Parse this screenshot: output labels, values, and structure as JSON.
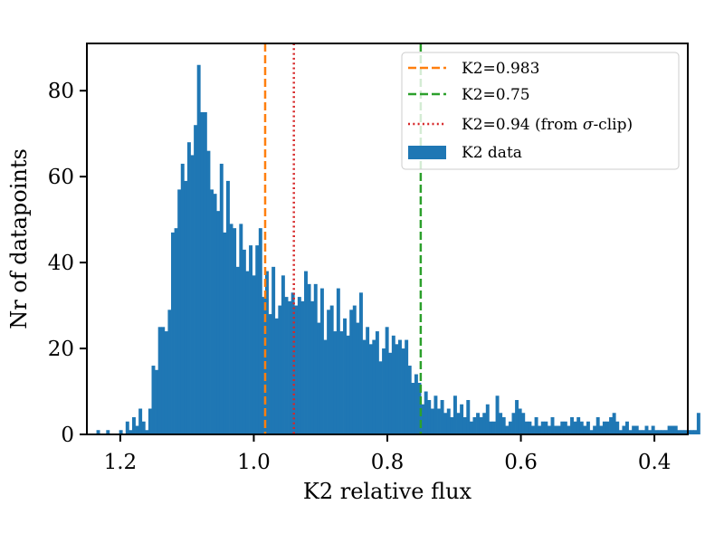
{
  "chart_data": {
    "type": "bar",
    "subtype": "histogram",
    "title": "",
    "xlabel": "K2 relative flux",
    "ylabel": "Nr of datapoints",
    "xlim": [
      1.25,
      0.35
    ],
    "x_inverted": true,
    "ylim": [
      0,
      91
    ],
    "xticks": [
      1.2,
      1.0,
      0.8,
      0.6,
      0.4
    ],
    "xtick_labels": [
      "1.2",
      "1.0",
      "0.8",
      "0.6",
      "0.4"
    ],
    "yticks": [
      0,
      20,
      40,
      60,
      80
    ],
    "ytick_labels": [
      "0",
      "20",
      "40",
      "60",
      "80"
    ],
    "grid": false,
    "legend_position": "top-right",
    "bin_start": 1.2357,
    "bin_width": 0.00486,
    "series": [
      {
        "name": "K2 data",
        "color": "#1f77b4",
        "values": [
          1,
          0,
          0,
          1,
          0,
          0,
          0,
          1,
          0,
          3,
          1,
          4,
          2,
          6,
          3,
          1,
          6,
          16,
          15,
          25,
          25,
          24,
          29,
          47,
          48,
          57,
          63,
          59,
          68,
          65,
          72,
          86,
          75,
          75,
          66,
          57,
          56,
          52,
          63,
          47,
          59,
          49,
          48,
          39,
          49,
          43,
          38,
          44,
          37,
          44,
          48,
          32,
          38,
          28,
          39,
          27,
          30,
          37,
          32,
          31,
          33,
          30,
          32,
          31,
          38,
          35,
          31,
          35,
          26,
          34,
          22,
          29,
          30,
          24,
          34,
          24,
          27,
          23,
          29,
          30,
          26,
          33,
          22,
          25,
          21,
          22,
          24,
          17,
          20,
          25,
          19,
          23,
          21,
          22,
          20,
          22,
          16,
          12,
          14,
          12,
          7,
          10,
          8,
          6,
          9,
          6,
          8,
          5,
          6,
          4,
          9,
          5,
          7,
          4,
          8,
          3,
          4,
          5,
          4,
          5,
          7,
          3,
          3,
          9,
          5,
          4,
          2,
          3,
          5,
          8,
          6,
          5,
          3,
          3,
          2,
          4,
          2,
          3,
          3,
          2,
          4,
          2,
          2,
          3,
          3,
          2,
          4,
          3,
          4,
          3,
          2,
          3,
          1,
          2,
          4,
          2,
          3,
          3,
          4,
          5,
          3,
          1,
          2,
          3,
          1,
          2,
          2,
          1,
          1,
          2,
          1,
          2,
          1,
          1,
          1,
          1,
          2,
          2,
          2,
          1,
          1,
          1,
          1,
          1,
          1,
          5
        ]
      }
    ],
    "vlines": [
      {
        "label": "K2=0.983",
        "x": 0.983,
        "color": "#ff7f0e",
        "style": "dashed"
      },
      {
        "label": "K2=0.75",
        "x": 0.75,
        "color": "#2ca02c",
        "style": "dashed"
      },
      {
        "label_prefix": "K2=0.94 (from ",
        "label_symbol": "σ",
        "label_suffix": "-clip)",
        "x": 0.94,
        "color": "#d62728",
        "style": "dotted"
      }
    ]
  }
}
